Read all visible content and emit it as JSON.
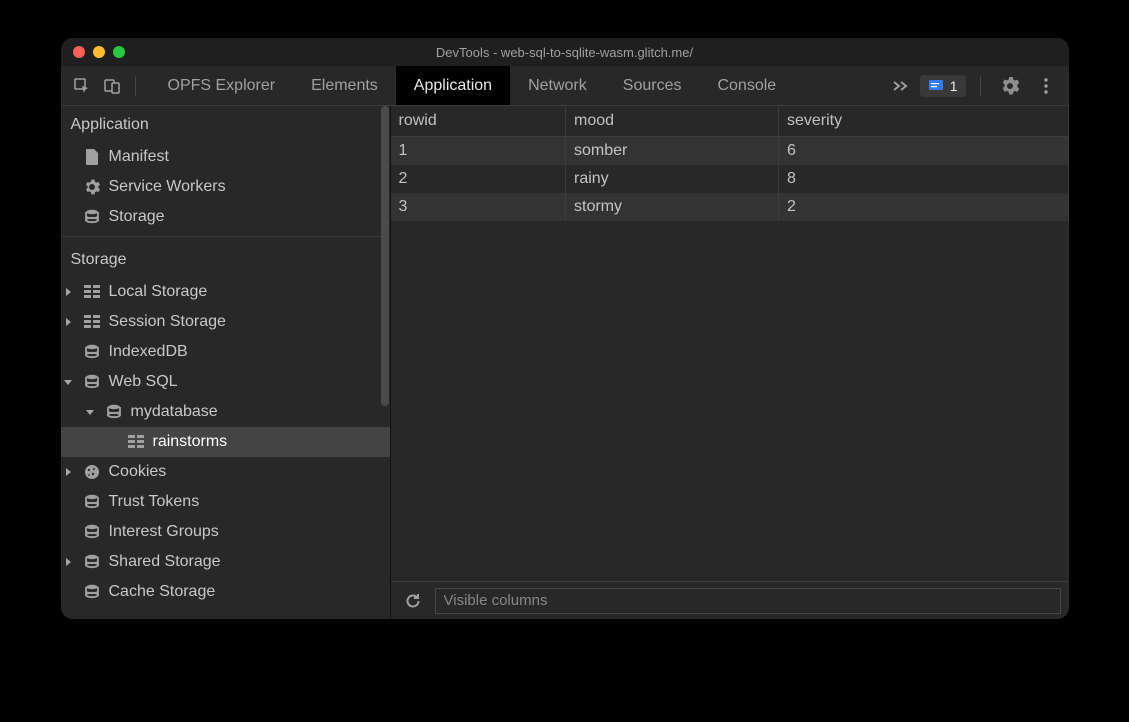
{
  "window": {
    "title": "DevTools - web-sql-to-sqlite-wasm.glitch.me/"
  },
  "toolbar": {
    "tabs": [
      {
        "label": "OPFS Explorer",
        "active": false
      },
      {
        "label": "Elements",
        "active": false
      },
      {
        "label": "Application",
        "active": true
      },
      {
        "label": "Network",
        "active": false
      },
      {
        "label": "Sources",
        "active": false
      },
      {
        "label": "Console",
        "active": false
      }
    ],
    "issues_count": "1"
  },
  "sidebar": {
    "sections": [
      {
        "heading": "Application",
        "items": [
          {
            "label": "Manifest",
            "icon": "file",
            "indent": 0,
            "caret": null
          },
          {
            "label": "Service Workers",
            "icon": "gear",
            "indent": 0,
            "caret": null
          },
          {
            "label": "Storage",
            "icon": "db",
            "indent": 0,
            "caret": null
          }
        ]
      },
      {
        "heading": "Storage",
        "items": [
          {
            "label": "Local Storage",
            "icon": "grid",
            "indent": 0,
            "caret": "right"
          },
          {
            "label": "Session Storage",
            "icon": "grid",
            "indent": 0,
            "caret": "right"
          },
          {
            "label": "IndexedDB",
            "icon": "db",
            "indent": 0,
            "caret": null
          },
          {
            "label": "Web SQL",
            "icon": "db",
            "indent": 0,
            "caret": "down"
          },
          {
            "label": "mydatabase",
            "icon": "db",
            "indent": 1,
            "caret": "down"
          },
          {
            "label": "rainstorms",
            "icon": "grid",
            "indent": 2,
            "caret": null,
            "selected": true
          },
          {
            "label": "Cookies",
            "icon": "cookie",
            "indent": 0,
            "caret": "right"
          },
          {
            "label": "Trust Tokens",
            "icon": "db",
            "indent": 0,
            "caret": null
          },
          {
            "label": "Interest Groups",
            "icon": "db",
            "indent": 0,
            "caret": null
          },
          {
            "label": "Shared Storage",
            "icon": "db",
            "indent": 0,
            "caret": "right"
          },
          {
            "label": "Cache Storage",
            "icon": "db",
            "indent": 0,
            "caret": null
          }
        ]
      }
    ]
  },
  "table": {
    "columns": [
      "rowid",
      "mood",
      "severity"
    ],
    "rows": [
      [
        "1",
        "somber",
        "6"
      ],
      [
        "2",
        "rainy",
        "8"
      ],
      [
        "3",
        "stormy",
        "2"
      ]
    ]
  },
  "bottombar": {
    "filter_placeholder": "Visible columns"
  },
  "colors": {
    "bg": "#282828",
    "titlebar": "#1f1f1f",
    "text": "#c4c4c4",
    "text_dim": "#a0a0a0",
    "border": "#3c3c3c",
    "row_alt": "#333333",
    "selected": "#444444",
    "active_tab_bg": "#000000",
    "issues_icon": "#2f7df6"
  }
}
